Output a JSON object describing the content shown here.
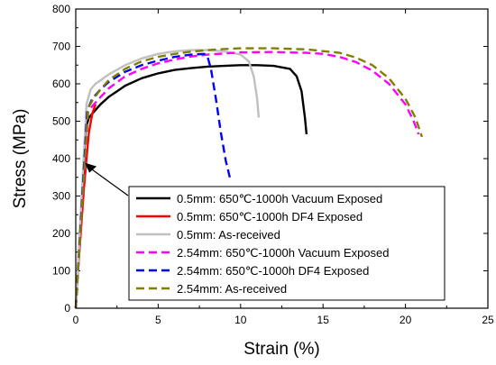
{
  "chart_data": {
    "type": "line",
    "xlabel": "Strain (%)",
    "ylabel": "Stress (MPa)",
    "xlim": [
      0,
      25
    ],
    "ylim": [
      0,
      800
    ],
    "xticks": [
      0,
      5,
      10,
      15,
      20,
      25
    ],
    "yticks": [
      0,
      100,
      200,
      300,
      400,
      500,
      600,
      700,
      800
    ],
    "grid": false,
    "legend_position": "bottom-center",
    "annotation_arrow": {
      "from": [
        2.5,
        340
      ],
      "to": [
        0.55,
        360
      ]
    },
    "series": [
      {
        "name": "0.5mm: 650℃-1000h Vacuum Exposed",
        "color": "#000000",
        "dash": "solid",
        "x": [
          0,
          0.6,
          0.8,
          1.0,
          1.5,
          2,
          3,
          4,
          5,
          6,
          7,
          8,
          9,
          10,
          11,
          12,
          13,
          13.4,
          13.7,
          13.9,
          14.0
        ],
        "y": [
          0,
          480,
          510,
          520,
          545,
          565,
          595,
          615,
          628,
          637,
          642,
          646,
          648,
          650,
          650,
          648,
          640,
          620,
          580,
          510,
          465
        ]
      },
      {
        "name": "0.5mm: 650℃-1000h DF4 Exposed",
        "color": "#ff0000",
        "dash": "solid",
        "x": [
          0,
          0.1,
          0.3,
          0.5,
          0.65,
          0.8,
          1.0,
          1.2
        ],
        "y": [
          0,
          80,
          200,
          320,
          400,
          470,
          520,
          545
        ]
      },
      {
        "name": "0.5mm: As-received",
        "color": "#c0c0c0",
        "dash": "solid",
        "x": [
          0,
          0.65,
          0.9,
          1.2,
          2,
          3,
          4,
          5,
          6,
          7,
          8,
          9,
          10,
          10.5,
          10.8,
          11.0,
          11.1
        ],
        "y": [
          0,
          545,
          585,
          600,
          625,
          650,
          668,
          680,
          687,
          690,
          690,
          687,
          678,
          660,
          620,
          560,
          510
        ]
      },
      {
        "name": "2.54mm: 650℃-1000h Vacuum Exposed",
        "color": "#ff00ff",
        "dash": "dashed",
        "x": [
          0,
          0.75,
          1.0,
          1.3,
          2,
          3,
          4,
          5,
          6,
          7,
          8,
          10,
          12,
          14,
          15,
          16,
          17,
          18,
          19,
          20,
          20.5,
          20.8
        ],
        "y": [
          0,
          525,
          540,
          555,
          588,
          620,
          640,
          655,
          665,
          673,
          678,
          684,
          685,
          683,
          680,
          672,
          658,
          635,
          600,
          545,
          500,
          465
        ]
      },
      {
        "name": "2.54mm: 650℃-1000h DF4 Exposed",
        "color": "#0000ff",
        "dash": "dashed",
        "x": [
          0,
          0.7,
          1.0,
          1.5,
          2,
          3,
          4,
          5,
          6,
          7,
          7.8,
          8.0,
          8.2,
          8.5,
          8.8,
          9.1,
          9.4
        ],
        "y": [
          0,
          530,
          560,
          585,
          605,
          632,
          650,
          662,
          672,
          678,
          680,
          672,
          640,
          560,
          470,
          395,
          340
        ]
      },
      {
        "name": "2.54mm: As-received",
        "color": "#808000",
        "dash": "dashed",
        "x": [
          0,
          0.75,
          1.0,
          1.5,
          2,
          3,
          4,
          5,
          6,
          7,
          8,
          9,
          10,
          12,
          14,
          16,
          17,
          18,
          19,
          20,
          20.6,
          21.0
        ],
        "y": [
          0,
          535,
          555,
          585,
          610,
          640,
          660,
          672,
          680,
          686,
          690,
          693,
          695,
          695,
          692,
          683,
          670,
          650,
          615,
          560,
          510,
          458
        ]
      }
    ]
  }
}
